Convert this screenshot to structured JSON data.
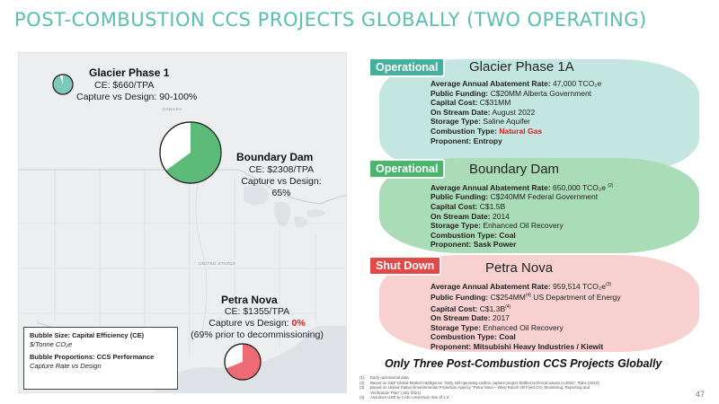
{
  "title": "POST-COMBUSTION CCS PROJECTS GLOBALLY (TWO OPERATING)",
  "map": {
    "labels": [
      "CANADA",
      "UNITED STATES",
      "MEXICO"
    ],
    "bubbles": [
      {
        "name": "Glacier Phase 1",
        "line1": "CE: $660/TPA",
        "line2": "Capture vs Design: 90-100%",
        "capture_fraction": 0.95,
        "color": "#7fc9bb"
      },
      {
        "name": "Boundary Dam",
        "line1": "CE: $2308/TPA",
        "line2": "Capture vs Design:",
        "line3": "65%",
        "capture_fraction": 0.65,
        "color": "#5cbb78"
      },
      {
        "name": "Petra Nova",
        "line1": "CE: $1355/TPA",
        "line2_prefix": "Capture vs Design: ",
        "line2_value": "0%",
        "line3": "(69% prior to decommissioning)",
        "capture_fraction": 0.69,
        "color": "#ee6a74"
      }
    ],
    "legend": {
      "size_title": "Bubble Size: Capital Efficiency (CE)",
      "size_unit": "$/Tonne CO₂e",
      "prop_title": "Bubble Proportions: CCS Performance",
      "prop_sub": "Capture Rate vs Design"
    }
  },
  "cards": [
    {
      "status": "Operational",
      "name": "Glacier Phase 1A",
      "rows": [
        {
          "k": "Average Annual Abatement Rate:",
          "v": "47,000 TCO₂e"
        },
        {
          "k": "Public Funding:",
          "v": "C$20MM Alberta Government"
        },
        {
          "k": "Capital Cost:",
          "v": "C$31MM"
        },
        {
          "k": "On Stream Date:",
          "v": "August 2022"
        },
        {
          "k": "Storage Type:",
          "v": "Saline Aquifer"
        },
        {
          "k": "Combustion Type:",
          "v": "Natural Gas"
        },
        {
          "k": "Proponent:",
          "v": "Entropy"
        }
      ]
    },
    {
      "status": "Operational",
      "name": "Boundary Dam",
      "rows": [
        {
          "k": "Average Annual Abatement Rate:",
          "v": "650,000 TCO₂e",
          "sup": "(2)"
        },
        {
          "k": "Public Funding:",
          "v": "C$240MM Federal Government"
        },
        {
          "k": "Capital Cost:",
          "v": "C$1.5B"
        },
        {
          "k": "On Stream Date:",
          "v": "2014"
        },
        {
          "k": "Storage Type:",
          "v": "Enhanced Oil Recovery"
        },
        {
          "k": "Combustion Type:",
          "v": "Coal"
        },
        {
          "k": "Proponent:",
          "v": "Sask Power"
        }
      ]
    },
    {
      "status": "Shut Down",
      "name": "Petra Nova",
      "rows": [
        {
          "k": "Average Annual Abatement Rate:",
          "v": "959,514 TCO₂e",
          "sup": "(3)"
        },
        {
          "k": "Public Funding:",
          "v": "C$254MM",
          "sup": "(4)",
          "v2": " US Department of Energy"
        },
        {
          "k": "Capital Cost:",
          "v": "C$1.3B",
          "sup": "(4)"
        },
        {
          "k": "On Stream Date:",
          "v": "2017"
        },
        {
          "k": "Storage Type:",
          "v": "Enhanced Oil Recovery"
        },
        {
          "k": "Combustion Type:",
          "v": "Coal"
        },
        {
          "k": "Proponent:",
          "v": "Mitsubishi Heavy Industries / Kiewit"
        }
      ]
    }
  ],
  "tagline": "Only Three Post-Combustion CCS Projects Globally",
  "footnotes": [
    {
      "n": "(1)",
      "t": "Early operational data"
    },
    {
      "n": "(2)",
      "t": "Based on S&P Global Market Intelligence \"Only still-operating carbon capture project battled technical issues in 2021\", Rites (2022)"
    },
    {
      "n": "(3)",
      "t": "Based on United States Environmental Protection Agency \"Petra Nova – West Ranch Oil Field CO₂ Monitoring, Reporting and"
    },
    {
      "n": "",
      "t": "Verification Plan\" (July 2021)"
    },
    {
      "n": "(4)",
      "t": "Assumes USD to CAD conversion rate of 1.3"
    }
  ],
  "page_number": "47",
  "colors": {
    "title": "#5bbfb0",
    "operational": "#45b09d",
    "operational2": "#4ab56d",
    "shutdown": "#e24a4a",
    "highlight": "#e02020"
  }
}
